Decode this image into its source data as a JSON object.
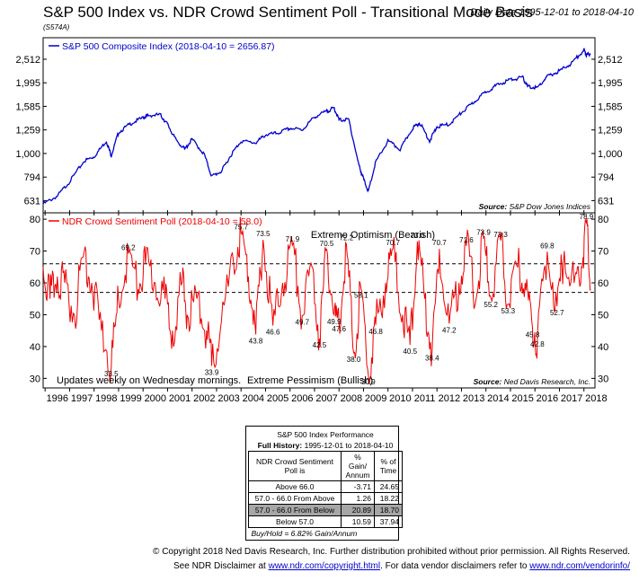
{
  "header": {
    "title": "S&P 500 Index vs. NDR Crowd Sentiment Poll - Transitional Mode Basis",
    "subtitle": "(S574A)",
    "date_range": "Daily Data 1995-12-01 to 2018-04-10"
  },
  "colors": {
    "sp500": "#0000cc",
    "sentiment": "#ee0000",
    "axis": "#000000"
  },
  "chart_data": [
    {
      "type": "line",
      "series": [
        {
          "name": "S&P 500 Composite Index (2018-04-10 = 2656.87)",
          "color": "#0000cc"
        }
      ],
      "x": [
        1995.92,
        1996.5,
        1997.0,
        1997.6,
        1998.0,
        1998.5,
        1998.7,
        1999.0,
        1999.5,
        2000.0,
        2000.2,
        2000.7,
        2001.0,
        2001.3,
        2001.7,
        2002.0,
        2002.5,
        2002.8,
        2003.2,
        2003.6,
        2004.0,
        2004.6,
        2005.0,
        2005.5,
        2006.0,
        2006.5,
        2007.0,
        2007.5,
        2007.8,
        2008.0,
        2008.4,
        2008.8,
        2009.0,
        2009.2,
        2009.5,
        2010.0,
        2010.5,
        2011.0,
        2011.3,
        2011.7,
        2012.0,
        2012.5,
        2013.0,
        2013.5,
        2014.0,
        2014.5,
        2015.0,
        2015.5,
        2015.7,
        2016.1,
        2016.5,
        2017.0,
        2017.5,
        2018.0,
        2018.1,
        2018.27
      ],
      "values": [
        610,
        660,
        760,
        930,
        970,
        1130,
        980,
        1230,
        1340,
        1420,
        1450,
        1460,
        1330,
        1160,
        1040,
        1150,
        990,
        800,
        840,
        990,
        1130,
        1110,
        1200,
        1220,
        1280,
        1260,
        1430,
        1510,
        1560,
        1390,
        1390,
        900,
        780,
        690,
        920,
        1130,
        1040,
        1280,
        1350,
        1130,
        1300,
        1330,
        1490,
        1650,
        1830,
        1960,
        2060,
        2100,
        1920,
        1900,
        2120,
        2240,
        2420,
        2750,
        2620,
        2657
      ],
      "y_ticks": [
        "2,512",
        "1,995",
        "1,585",
        "1,259",
        "1,000",
        "794",
        "631"
      ],
      "y_tick_values": [
        2512,
        1995,
        1585,
        1259,
        1000,
        794,
        631
      ],
      "log_scale": true,
      "ylim": [
        560,
        3100
      ],
      "source": "S&P Dow Jones Indices"
    },
    {
      "type": "line",
      "series": [
        {
          "name": "NDR Crowd Sentiment Poll (2018-04-10 = 58.0)",
          "color": "#ee0000"
        }
      ],
      "x": [
        1995.92,
        1996.2,
        1996.5,
        1996.8,
        1997.2,
        1997.6,
        1997.9,
        1998.3,
        1998.7,
        1999.0,
        1999.4,
        1999.8,
        2000.1,
        2000.5,
        2000.9,
        2001.2,
        2001.6,
        2001.8,
        2002.2,
        2002.6,
        2002.8,
        2003.2,
        2003.7,
        2004.0,
        2004.3,
        2004.6,
        2004.9,
        2005.3,
        2005.7,
        2006.1,
        2006.5,
        2006.9,
        2007.2,
        2007.5,
        2007.8,
        2008.0,
        2008.3,
        2008.6,
        2008.9,
        2009.2,
        2009.5,
        2009.9,
        2010.2,
        2010.6,
        2010.9,
        2011.2,
        2011.5,
        2011.8,
        2012.1,
        2012.5,
        2012.9,
        2013.2,
        2013.6,
        2013.9,
        2014.2,
        2014.6,
        2014.9,
        2015.3,
        2015.6,
        2015.9,
        2016.1,
        2016.5,
        2016.9,
        2017.2,
        2017.6,
        2017.9,
        2018.1,
        2018.27
      ],
      "values": [
        65,
        55,
        62,
        60,
        50,
        70,
        60,
        45,
        33.5,
        55,
        69.2,
        58,
        66,
        60,
        55,
        45,
        60,
        50,
        55,
        45,
        33.9,
        48,
        66,
        75.7,
        62,
        43.8,
        73.5,
        46.6,
        60,
        71.9,
        49.7,
        65,
        42.5,
        70.5,
        49.9,
        47.6,
        72.2,
        38,
        58.1,
        30.9,
        46.8,
        60,
        70.7,
        50,
        40.5,
        73.0,
        55,
        38.4,
        70.7,
        47.2,
        60,
        71.6,
        55,
        73.9,
        55.2,
        73.3,
        53.3,
        65,
        60,
        45.8,
        42.8,
        69.8,
        52.7,
        70,
        60,
        65,
        78.9,
        58
      ],
      "peak_labels": [
        {
          "x": 1998.7,
          "y": 33.5,
          "text": "33.5"
        },
        {
          "x": 1999.4,
          "y": 69.2,
          "text": "69.2"
        },
        {
          "x": 2002.8,
          "y": 33.9,
          "text": "33.9"
        },
        {
          "x": 2004.0,
          "y": 75.7,
          "text": "75.7"
        },
        {
          "x": 2004.6,
          "y": 43.8,
          "text": "43.8"
        },
        {
          "x": 2004.9,
          "y": 73.5,
          "text": "73.5"
        },
        {
          "x": 2005.3,
          "y": 46.6,
          "text": "46.6"
        },
        {
          "x": 2006.1,
          "y": 71.9,
          "text": "71.9"
        },
        {
          "x": 2006.5,
          "y": 49.7,
          "text": "49.7"
        },
        {
          "x": 2007.2,
          "y": 42.5,
          "text": "42.5"
        },
        {
          "x": 2007.5,
          "y": 70.5,
          "text": "70.5"
        },
        {
          "x": 2007.8,
          "y": 49.9,
          "text": "49.9"
        },
        {
          "x": 2008.0,
          "y": 47.6,
          "text": "47.6"
        },
        {
          "x": 2008.3,
          "y": 72.2,
          "text": "72.2"
        },
        {
          "x": 2008.6,
          "y": 38.0,
          "text": "38.0"
        },
        {
          "x": 2008.9,
          "y": 58.1,
          "text": "58.1"
        },
        {
          "x": 2009.2,
          "y": 30.9,
          "text": "30.9"
        },
        {
          "x": 2009.5,
          "y": 46.8,
          "text": "46.8"
        },
        {
          "x": 2010.2,
          "y": 70.7,
          "text": "70.7"
        },
        {
          "x": 2010.9,
          "y": 40.5,
          "text": "40.5"
        },
        {
          "x": 2011.2,
          "y": 73.0,
          "text": "73.0"
        },
        {
          "x": 2011.8,
          "y": 38.4,
          "text": "38.4"
        },
        {
          "x": 2012.1,
          "y": 70.7,
          "text": "70.7"
        },
        {
          "x": 2012.5,
          "y": 47.2,
          "text": "47.2"
        },
        {
          "x": 2013.2,
          "y": 71.6,
          "text": "71.6"
        },
        {
          "x": 2013.9,
          "y": 73.9,
          "text": "73.9"
        },
        {
          "x": 2014.2,
          "y": 55.2,
          "text": "55.2"
        },
        {
          "x": 2014.6,
          "y": 73.3,
          "text": "73.3"
        },
        {
          "x": 2014.9,
          "y": 53.3,
          "text": "53.3"
        },
        {
          "x": 2015.9,
          "y": 45.8,
          "text": "45.8"
        },
        {
          "x": 2016.1,
          "y": 42.8,
          "text": "42.8"
        },
        {
          "x": 2016.5,
          "y": 69.8,
          "text": "69.8"
        },
        {
          "x": 2016.9,
          "y": 52.7,
          "text": "52.7"
        },
        {
          "x": 2018.1,
          "y": 78.9,
          "text": "78.9"
        }
      ],
      "thresholds": [
        66,
        57
      ],
      "y_ticks": [
        "80",
        "70",
        "60",
        "50",
        "40",
        "30"
      ],
      "y_tick_values": [
        80,
        70,
        60,
        50,
        40,
        30
      ],
      "ylim": [
        27,
        82
      ],
      "x_ticks": [
        "1996",
        "1997",
        "1998",
        "1999",
        "2000",
        "2001",
        "2002",
        "2003",
        "2004",
        "2005",
        "2006",
        "2007",
        "2008",
        "2009",
        "2010",
        "2011",
        "2012",
        "2013",
        "2014",
        "2015",
        "2016",
        "2017",
        "2018"
      ],
      "xlim": [
        1995.92,
        2018.45
      ],
      "annotations": {
        "top": "Extreme Optimism (Bearish)",
        "bottom": "Extreme Pessimism (Bullish)",
        "updates": "Updates weekly on Wednesday mornings."
      },
      "source": "Ned Davis Research, Inc."
    }
  ],
  "source_label": "Source:",
  "table": {
    "title": "S&P 500 Index Performance",
    "history_label": "Full History:",
    "history_range": "1995-12-01 to 2018-04-10",
    "headers": [
      "NDR Crowd Sentiment Poll is",
      "% Gain/ Annum",
      "% of Time"
    ],
    "rows": [
      [
        "Above 66.0",
        "-3.71",
        "24.65"
      ],
      [
        "57.0 - 66.0 From Above",
        "1.26",
        "18.22"
      ],
      [
        "57.0 - 66.0 From Below",
        "20.89",
        "18.70"
      ],
      [
        "Below 57.0",
        "10.59",
        "37.94"
      ]
    ],
    "footer": "Buy/Hold = 6.82% Gain/Annum"
  },
  "footer": {
    "copyright": "© Copyright 2018 Ned Davis Research, Inc. Further distribution prohibited without prior permission. All Rights Reserved.",
    "disclaimer_pre": "See NDR Disclaimer at ",
    "disclaimer_link1": "www.ndr.com/copyright.html",
    "disclaimer_mid": ". For data vendor disclaimers refer to ",
    "disclaimer_link2": "www.ndr.com/vendorinfo/"
  }
}
